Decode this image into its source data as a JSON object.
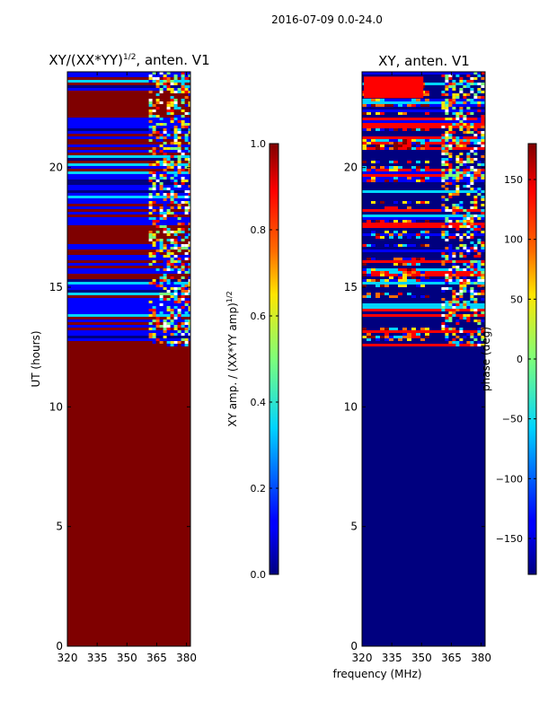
{
  "figure": {
    "suptitle": "2016-07-09 0.0-24.0"
  },
  "colors": {
    "jet_dark_red": "#7f0000",
    "jet_dark_blue": "#00007f",
    "jet_blue": "#0000ff",
    "jet_cyan": "#00d4ff",
    "jet_green": "#7dff7a",
    "jet_yellow": "#ffe500",
    "jet_orange": "#ff6d00",
    "jet_red": "#ff0000"
  },
  "chart_data": [
    {
      "type": "heatmap",
      "title_main": "XY/(XX*YY)",
      "title_exp": "1/2",
      "title_suffix": ", anten. V1",
      "xlabel": "",
      "ylabel": "UT (hours)",
      "xlim": [
        320,
        382
      ],
      "ylim": [
        0,
        24
      ],
      "xticks": [
        "320",
        "335",
        "350",
        "365",
        "380"
      ],
      "xtick_values": [
        320,
        335,
        350,
        365,
        380
      ],
      "yticks": [
        "0",
        "5",
        "10",
        "15",
        "20"
      ],
      "ytick_values": [
        0,
        5,
        10,
        15,
        20
      ],
      "background_value": 1.0,
      "colorbar": {
        "label_main": "XY amp. / (XX*YY amp)",
        "label_exp": "1/2",
        "range": [
          0.0,
          1.0
        ],
        "ticks": [
          "0.0",
          "0.2",
          "0.4",
          "0.6",
          "0.8",
          "1.0"
        ],
        "tick_values": [
          0.0,
          0.2,
          0.4,
          0.6,
          0.8,
          1.0
        ]
      }
    },
    {
      "type": "heatmap",
      "title_main": "XY, anten. V1",
      "xlabel": "frequency (MHz)",
      "ylabel": "",
      "xlim": [
        320,
        382
      ],
      "ylim": [
        0,
        24
      ],
      "xticks": [
        "320",
        "335",
        "350",
        "365",
        "380"
      ],
      "xtick_values": [
        320,
        335,
        350,
        365,
        380
      ],
      "yticks": [
        "0",
        "5",
        "10",
        "15",
        "20"
      ],
      "ytick_values": [
        0,
        5,
        10,
        15,
        20
      ],
      "background_value": -180,
      "colorbar": {
        "label_main": "phase (deg)",
        "range": [
          -180,
          180
        ],
        "ticks": [
          "−150",
          "−100",
          "−50",
          "0",
          "50",
          "100",
          "150"
        ],
        "tick_values": [
          -150,
          -100,
          -50,
          0,
          50,
          100,
          150
        ]
      }
    }
  ]
}
